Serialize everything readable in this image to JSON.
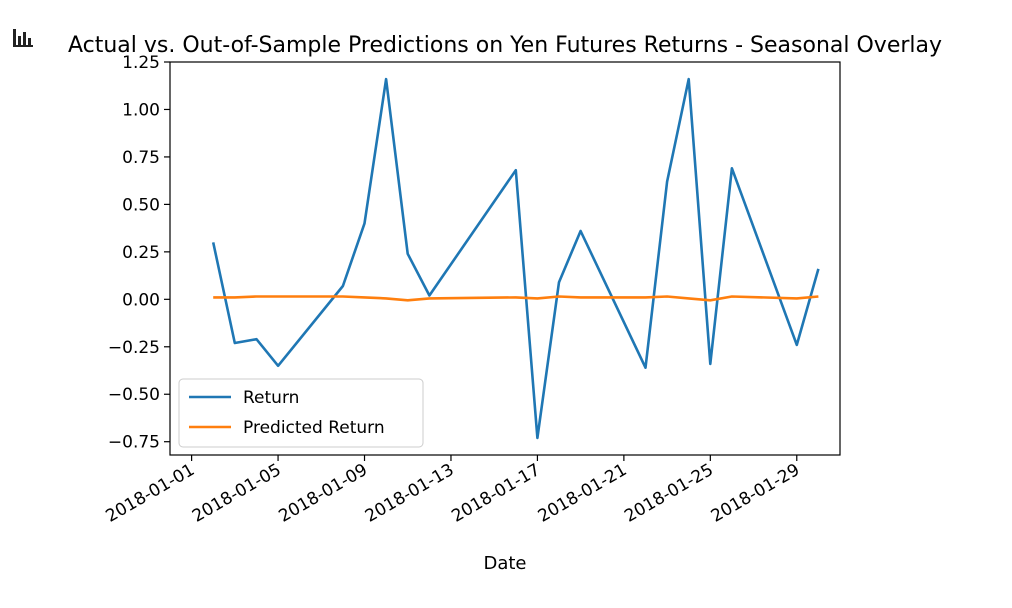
{
  "chart_data": {
    "type": "line",
    "title": "Actual vs. Out-of-Sample Predictions on Yen Futures Returns - Seasonal Overlay",
    "xlabel": "Date",
    "ylabel": "",
    "x_ticks": [
      "2018-01-01",
      "2018-01-05",
      "2018-01-09",
      "2018-01-13",
      "2018-01-17",
      "2018-01-21",
      "2018-01-25",
      "2018-01-29"
    ],
    "y_ticks": [
      1.25,
      1.0,
      0.75,
      0.5,
      0.25,
      0.0,
      -0.25,
      -0.5,
      -0.75
    ],
    "y_tick_labels": [
      "1.25",
      "1.00",
      "0.75",
      "0.50",
      "0.25",
      "0.00",
      "−0.25",
      "−0.50",
      "−0.75"
    ],
    "xlim": [
      "2017-12-31",
      "2018-01-31"
    ],
    "ylim": [
      -0.82,
      1.25
    ],
    "legend_position": "lower-left",
    "grid": false,
    "series": [
      {
        "name": "Return",
        "color": "#1f77b4",
        "x": [
          "2018-01-02",
          "2018-01-03",
          "2018-01-04",
          "2018-01-05",
          "2018-01-08",
          "2018-01-09",
          "2018-01-10",
          "2018-01-11",
          "2018-01-12",
          "2018-01-16",
          "2018-01-17",
          "2018-01-18",
          "2018-01-19",
          "2018-01-22",
          "2018-01-23",
          "2018-01-24",
          "2018-01-25",
          "2018-01-26",
          "2018-01-29",
          "2018-01-30"
        ],
        "values": [
          0.3,
          -0.23,
          -0.21,
          -0.35,
          0.07,
          0.4,
          1.16,
          0.24,
          0.02,
          0.68,
          -0.73,
          0.09,
          0.36,
          -0.36,
          0.62,
          1.16,
          -0.34,
          0.69,
          -0.24,
          0.16
        ]
      },
      {
        "name": "Predicted Return",
        "color": "#ff7f0e",
        "x": [
          "2018-01-02",
          "2018-01-03",
          "2018-01-04",
          "2018-01-05",
          "2018-01-08",
          "2018-01-09",
          "2018-01-10",
          "2018-01-11",
          "2018-01-12",
          "2018-01-16",
          "2018-01-17",
          "2018-01-18",
          "2018-01-19",
          "2018-01-22",
          "2018-01-23",
          "2018-01-24",
          "2018-01-25",
          "2018-01-26",
          "2018-01-29",
          "2018-01-30"
        ],
        "values": [
          0.01,
          0.01,
          0.015,
          0.015,
          0.015,
          0.01,
          0.005,
          -0.005,
          0.005,
          0.01,
          0.005,
          0.015,
          0.01,
          0.01,
          0.015,
          0.005,
          -0.005,
          0.015,
          0.005,
          0.015
        ]
      }
    ]
  }
}
